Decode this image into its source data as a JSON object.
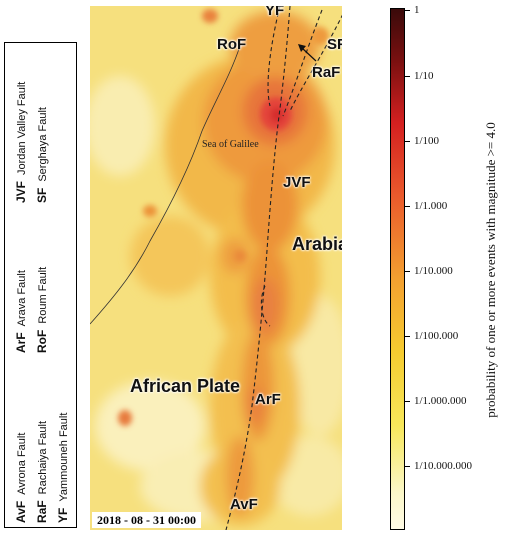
{
  "legend": {
    "row1": [
      {
        "abbr": "AvF",
        "name": "Avrona Fault"
      },
      {
        "abbr": "ArF",
        "name": "Arava Fault"
      },
      {
        "abbr": "JVF",
        "name": "Jordan Valley Fault"
      }
    ],
    "row2": [
      {
        "abbr": "RaF",
        "name": "Rachaiya Fault"
      },
      {
        "abbr": "RoF",
        "name": "Roum Fault"
      },
      {
        "abbr": "SF",
        "name": "Serghaya Fault"
      }
    ],
    "row3": [
      {
        "abbr": "YF",
        "name": "Yammouneh Fault"
      }
    ]
  },
  "map": {
    "labels": {
      "yf": "YF",
      "rof": "RoF",
      "sf": "SF",
      "raf": "RaF",
      "lake": "Sea of Galilee",
      "jvf": "JVF",
      "arabian_plate": "Arabian Plate",
      "african_plate": "African Plate",
      "arf": "ArF",
      "avf": "AvF"
    },
    "timestamp": "2018 - 08 - 31  00:00"
  },
  "colorbar": {
    "title": "probability of one or more events with magnitude >= 4.0",
    "ticks": [
      "1",
      "1/10",
      "1/100",
      "1/1.000",
      "1/10.000",
      "1/100.000",
      "1/1.000.000",
      "1/10.000.000"
    ],
    "scale": "log",
    "colors": [
      "#3a0a0a",
      "#d42020",
      "#f3a030",
      "#f7e75a",
      "#fffbe6"
    ]
  }
}
